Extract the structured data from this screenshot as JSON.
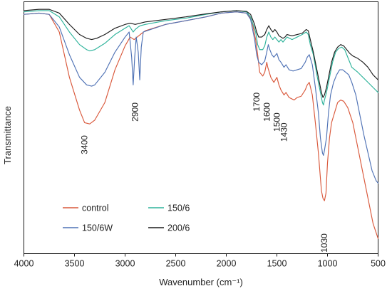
{
  "chart_data": {
    "type": "line",
    "xlabel": "Wavenumber (cm⁻¹)",
    "ylabel": "Transmittance",
    "xlim": [
      4000,
      500
    ],
    "x_reversed": true,
    "ylim": [
      0,
      100
    ],
    "y_ticks_shown": false,
    "grid": false,
    "legend_placement": "bottom-left, two columns",
    "x_ticks": [
      4000,
      3500,
      3000,
      2500,
      2000,
      1500,
      1000,
      500
    ],
    "series": [
      {
        "name": "control",
        "color": "#d9583b",
        "points": [
          [
            4000,
            95
          ],
          [
            3850,
            95.5
          ],
          [
            3750,
            95
          ],
          [
            3650,
            88
          ],
          [
            3550,
            70
          ],
          [
            3450,
            57
          ],
          [
            3400,
            52
          ],
          [
            3350,
            51.5
          ],
          [
            3300,
            53
          ],
          [
            3200,
            60
          ],
          [
            3100,
            73
          ],
          [
            3000,
            82.5
          ],
          [
            2950,
            86
          ],
          [
            2910,
            85
          ],
          [
            2880,
            86
          ],
          [
            2850,
            87
          ],
          [
            2800,
            88.5
          ],
          [
            2600,
            91
          ],
          [
            2400,
            92.5
          ],
          [
            2200,
            94
          ],
          [
            2050,
            95.5
          ],
          [
            1900,
            96
          ],
          [
            1800,
            95.5
          ],
          [
            1750,
            93
          ],
          [
            1710,
            85
          ],
          [
            1690,
            79
          ],
          [
            1670,
            72
          ],
          [
            1640,
            70.5
          ],
          [
            1620,
            72
          ],
          [
            1600,
            76
          ],
          [
            1590,
            74
          ],
          [
            1560,
            70
          ],
          [
            1530,
            68
          ],
          [
            1500,
            70
          ],
          [
            1480,
            67
          ],
          [
            1460,
            65
          ],
          [
            1430,
            63
          ],
          [
            1410,
            64
          ],
          [
            1380,
            62
          ],
          [
            1330,
            61
          ],
          [
            1300,
            62
          ],
          [
            1260,
            62.5
          ],
          [
            1220,
            65
          ],
          [
            1200,
            67
          ],
          [
            1180,
            68
          ],
          [
            1150,
            63
          ],
          [
            1120,
            52
          ],
          [
            1090,
            40
          ],
          [
            1060,
            25
          ],
          [
            1045,
            22
          ],
          [
            1030,
            21
          ],
          [
            1015,
            24
          ],
          [
            1000,
            36
          ],
          [
            980,
            46
          ],
          [
            960,
            52
          ],
          [
            930,
            56
          ],
          [
            900,
            60
          ],
          [
            870,
            61
          ],
          [
            840,
            60.5
          ],
          [
            800,
            58
          ],
          [
            750,
            52
          ],
          [
            700,
            42
          ],
          [
            650,
            32
          ],
          [
            600,
            22
          ],
          [
            550,
            12
          ],
          [
            500,
            6
          ]
        ]
      },
      {
        "name": "150/6",
        "color": "#2eb39b",
        "points": [
          [
            4000,
            96
          ],
          [
            3850,
            96.5
          ],
          [
            3750,
            96.5
          ],
          [
            3650,
            94
          ],
          [
            3550,
            88
          ],
          [
            3450,
            83
          ],
          [
            3380,
            81
          ],
          [
            3350,
            80.5
          ],
          [
            3300,
            81
          ],
          [
            3200,
            83.5
          ],
          [
            3100,
            87
          ],
          [
            3000,
            89.5
          ],
          [
            2960,
            90.5
          ],
          [
            2920,
            88
          ],
          [
            2900,
            89
          ],
          [
            2870,
            90
          ],
          [
            2850,
            90.5
          ],
          [
            2800,
            91
          ],
          [
            2600,
            92.5
          ],
          [
            2400,
            93.5
          ],
          [
            2200,
            95
          ],
          [
            2050,
            96
          ],
          [
            1900,
            96.5
          ],
          [
            1800,
            96
          ],
          [
            1760,
            94
          ],
          [
            1710,
            88
          ],
          [
            1690,
            83
          ],
          [
            1670,
            81
          ],
          [
            1640,
            81
          ],
          [
            1620,
            82.5
          ],
          [
            1600,
            86
          ],
          [
            1580,
            88
          ],
          [
            1560,
            86
          ],
          [
            1540,
            85
          ],
          [
            1520,
            86
          ],
          [
            1500,
            85
          ],
          [
            1480,
            84
          ],
          [
            1460,
            85
          ],
          [
            1440,
            84
          ],
          [
            1420,
            85
          ],
          [
            1400,
            86
          ],
          [
            1350,
            85
          ],
          [
            1300,
            86
          ],
          [
            1250,
            87
          ],
          [
            1210,
            88
          ],
          [
            1190,
            87
          ],
          [
            1170,
            83
          ],
          [
            1140,
            79
          ],
          [
            1100,
            70
          ],
          [
            1070,
            64
          ],
          [
            1050,
            60
          ],
          [
            1040,
            59
          ],
          [
            1030,
            61
          ],
          [
            1010,
            64
          ],
          [
            980,
            70
          ],
          [
            950,
            76
          ],
          [
            920,
            80
          ],
          [
            890,
            81.5
          ],
          [
            860,
            82
          ],
          [
            830,
            81
          ],
          [
            800,
            78
          ],
          [
            760,
            74
          ],
          [
            700,
            72
          ],
          [
            650,
            70
          ],
          [
            600,
            68
          ],
          [
            550,
            66
          ],
          [
            500,
            64
          ]
        ]
      },
      {
        "name": "150/6W",
        "color": "#4f72b5",
        "points": [
          [
            4000,
            95
          ],
          [
            3850,
            95.5
          ],
          [
            3750,
            95
          ],
          [
            3650,
            90
          ],
          [
            3550,
            79
          ],
          [
            3450,
            70
          ],
          [
            3380,
            67
          ],
          [
            3330,
            66.5
          ],
          [
            3300,
            67
          ],
          [
            3200,
            72
          ],
          [
            3100,
            80
          ],
          [
            3000,
            86
          ],
          [
            2960,
            88
          ],
          [
            2935,
            78
          ],
          [
            2920,
            67
          ],
          [
            2905,
            78
          ],
          [
            2890,
            86
          ],
          [
            2870,
            80
          ],
          [
            2855,
            69
          ],
          [
            2840,
            82
          ],
          [
            2820,
            88
          ],
          [
            2600,
            91
          ],
          [
            2400,
            92.5
          ],
          [
            2200,
            94
          ],
          [
            2050,
            95.5
          ],
          [
            1900,
            96
          ],
          [
            1800,
            95.5
          ],
          [
            1760,
            93
          ],
          [
            1720,
            85
          ],
          [
            1700,
            79
          ],
          [
            1680,
            76
          ],
          [
            1650,
            75
          ],
          [
            1620,
            76.5
          ],
          [
            1600,
            80
          ],
          [
            1585,
            83
          ],
          [
            1570,
            81
          ],
          [
            1550,
            79
          ],
          [
            1530,
            78
          ],
          [
            1500,
            79.5
          ],
          [
            1480,
            77
          ],
          [
            1460,
            76
          ],
          [
            1430,
            74
          ],
          [
            1410,
            75
          ],
          [
            1380,
            73
          ],
          [
            1340,
            72.5
          ],
          [
            1300,
            73
          ],
          [
            1260,
            73.5
          ],
          [
            1220,
            76
          ],
          [
            1200,
            78
          ],
          [
            1180,
            79
          ],
          [
            1150,
            75
          ],
          [
            1120,
            66
          ],
          [
            1090,
            56
          ],
          [
            1070,
            46
          ],
          [
            1050,
            40
          ],
          [
            1040,
            39
          ],
          [
            1030,
            41
          ],
          [
            1010,
            46
          ],
          [
            990,
            56
          ],
          [
            970,
            63
          ],
          [
            940,
            68
          ],
          [
            910,
            71
          ],
          [
            880,
            73
          ],
          [
            850,
            73
          ],
          [
            820,
            72
          ],
          [
            790,
            71
          ],
          [
            760,
            68
          ],
          [
            720,
            63
          ],
          [
            680,
            55
          ],
          [
            640,
            47
          ],
          [
            600,
            40
          ],
          [
            560,
            33
          ],
          [
            520,
            29
          ],
          [
            500,
            28
          ]
        ]
      },
      {
        "name": "200/6",
        "color": "#1c1c1c",
        "points": [
          [
            4000,
            96.5
          ],
          [
            3850,
            97
          ],
          [
            3750,
            97
          ],
          [
            3650,
            95.5
          ],
          [
            3550,
            91
          ],
          [
            3450,
            87
          ],
          [
            3380,
            85.5
          ],
          [
            3330,
            85
          ],
          [
            3280,
            85.5
          ],
          [
            3200,
            87
          ],
          [
            3100,
            89.5
          ],
          [
            3000,
            91
          ],
          [
            2950,
            91.5
          ],
          [
            2900,
            91
          ],
          [
            2850,
            91.5
          ],
          [
            2800,
            92
          ],
          [
            2600,
            93
          ],
          [
            2400,
            94
          ],
          [
            2200,
            95.2
          ],
          [
            2050,
            96
          ],
          [
            1900,
            96.5
          ],
          [
            1800,
            96.2
          ],
          [
            1760,
            95
          ],
          [
            1720,
            91
          ],
          [
            1700,
            88
          ],
          [
            1680,
            86
          ],
          [
            1650,
            86
          ],
          [
            1620,
            87
          ],
          [
            1600,
            89
          ],
          [
            1580,
            90.5
          ],
          [
            1560,
            89
          ],
          [
            1540,
            88
          ],
          [
            1520,
            89
          ],
          [
            1500,
            88
          ],
          [
            1480,
            86.5
          ],
          [
            1460,
            86
          ],
          [
            1440,
            85.5
          ],
          [
            1420,
            86
          ],
          [
            1400,
            87
          ],
          [
            1350,
            86.5
          ],
          [
            1300,
            87
          ],
          [
            1250,
            87.5
          ],
          [
            1210,
            89
          ],
          [
            1190,
            88.5
          ],
          [
            1170,
            85
          ],
          [
            1140,
            80
          ],
          [
            1110,
            74
          ],
          [
            1080,
            68
          ],
          [
            1060,
            64
          ],
          [
            1045,
            62
          ],
          [
            1030,
            63
          ],
          [
            1010,
            66
          ],
          [
            990,
            70
          ],
          [
            960,
            76
          ],
          [
            930,
            80
          ],
          [
            900,
            82
          ],
          [
            870,
            83
          ],
          [
            840,
            82.5
          ],
          [
            810,
            81
          ],
          [
            780,
            79.5
          ],
          [
            750,
            78.5
          ],
          [
            700,
            77.5
          ],
          [
            650,
            76
          ],
          [
            600,
            74
          ],
          [
            550,
            71
          ],
          [
            500,
            69
          ]
        ]
      }
    ],
    "annotations": [
      {
        "text": "3400",
        "x": 3400,
        "y": 47
      },
      {
        "text": "2900",
        "x": 2900,
        "y": 60
      },
      {
        "text": "1700",
        "x": 1700,
        "y": 64
      },
      {
        "text": "1600",
        "x": 1600,
        "y": 60
      },
      {
        "text": "1500",
        "x": 1500,
        "y": 56
      },
      {
        "text": "1430",
        "x": 1430,
        "y": 52
      },
      {
        "text": "1030",
        "x": 1030,
        "y": 8
      }
    ]
  }
}
